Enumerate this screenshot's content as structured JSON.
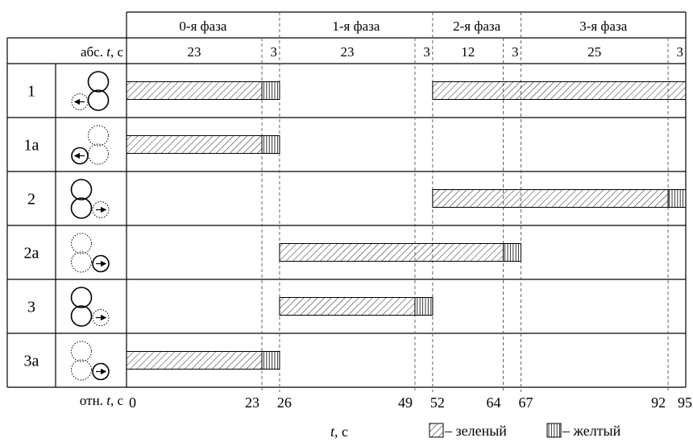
{
  "phases": [
    {
      "label": "0-я фаза"
    },
    {
      "label": "1-я фаза"
    },
    {
      "label": "2-я фаза"
    },
    {
      "label": "3-я фаза"
    }
  ],
  "abs_label": {
    "prefix": "абс. ",
    "var": "t",
    "suffix": ", с"
  },
  "rel_label": {
    "prefix": "отн. ",
    "var": "t",
    "suffix": ", с"
  },
  "durations": [
    "23",
    "3",
    "23",
    "3",
    "12",
    "3",
    "25",
    "3"
  ],
  "time_ticks": [
    {
      "t": 0,
      "label": "0"
    },
    {
      "t": 23,
      "label": "23"
    },
    {
      "t": 26,
      "label": "26"
    },
    {
      "t": 49,
      "label": "49"
    },
    {
      "t": 52,
      "label": "52"
    },
    {
      "t": 64,
      "label": "64"
    },
    {
      "t": 67,
      "label": "67"
    },
    {
      "t": 92,
      "label": "92"
    },
    {
      "t": 95,
      "label": "95"
    }
  ],
  "time_axis": {
    "var": "t",
    "suffix": ", с"
  },
  "legend": {
    "green": " – зеленый",
    "yellow": " – желтый"
  },
  "rows": [
    {
      "label": "1",
      "icon": "left-turn-signal-right-lights-icon",
      "segments": [
        {
          "start": 0,
          "end": 23,
          "type": "green"
        },
        {
          "start": 23,
          "end": 26,
          "type": "yellow"
        },
        {
          "start": 52,
          "end": 95,
          "type": "green"
        }
      ]
    },
    {
      "label": "1а",
      "icon": "left-arrow-section-icon",
      "segments": [
        {
          "start": 0,
          "end": 23,
          "type": "green"
        },
        {
          "start": 23,
          "end": 26,
          "type": "yellow"
        }
      ]
    },
    {
      "label": "2",
      "icon": "right-turn-signal-left-lights-icon",
      "segments": [
        {
          "start": 52,
          "end": 92,
          "type": "green"
        },
        {
          "start": 92,
          "end": 95,
          "type": "yellow"
        }
      ]
    },
    {
      "label": "2а",
      "icon": "right-arrow-section-icon",
      "segments": [
        {
          "start": 26,
          "end": 64,
          "type": "green"
        },
        {
          "start": 64,
          "end": 67,
          "type": "yellow"
        }
      ]
    },
    {
      "label": "3",
      "icon": "right-turn-signal-left-lights-icon",
      "segments": [
        {
          "start": 26,
          "end": 49,
          "type": "green"
        },
        {
          "start": 49,
          "end": 52,
          "type": "yellow"
        }
      ]
    },
    {
      "label": "3а",
      "icon": "right-arrow-section-icon",
      "segments": [
        {
          "start": 0,
          "end": 23,
          "type": "green"
        },
        {
          "start": 23,
          "end": 26,
          "type": "yellow"
        }
      ]
    }
  ],
  "colors": {
    "line": "#000000",
    "dashed": "#555555",
    "hatch": "#222222"
  }
}
